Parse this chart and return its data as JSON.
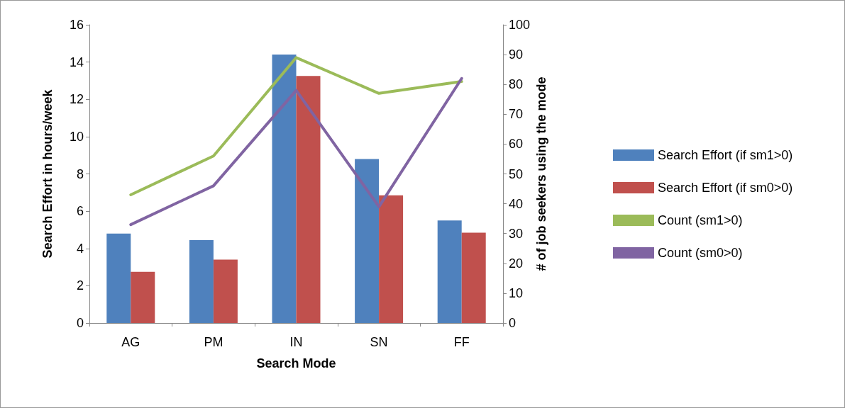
{
  "chart_data": {
    "type": "bar",
    "xlabel": "Search Mode",
    "ylabel": "Search Effort in hours/week",
    "y2label": "# of job seekers using the mode",
    "categories": [
      "AG",
      "PM",
      "IN",
      "SN",
      "FF"
    ],
    "series": [
      {
        "name": "Search Effort (if sm1>0)",
        "color": "#4f81bd",
        "values": [
          4.8,
          4.45,
          14.4,
          8.8,
          5.5
        ]
      },
      {
        "name": "Search Effort (if sm0>0)",
        "color": "#c0504d",
        "values": [
          2.75,
          3.4,
          13.25,
          6.85,
          4.85
        ]
      },
      {
        "name": "Count (sm1>0)",
        "type": "line",
        "axis": "y2",
        "color": "#9bbb59",
        "values": [
          43,
          56,
          89,
          77,
          81
        ]
      },
      {
        "name": "Count (sm0>0)",
        "type": "line",
        "axis": "y2",
        "color": "#8064a2",
        "values": [
          33,
          46,
          78,
          39,
          82
        ]
      }
    ],
    "ylim": [
      0,
      16
    ],
    "yticks": [
      0,
      2,
      4,
      6,
      8,
      10,
      12,
      14,
      16
    ],
    "y2lim": [
      0,
      100
    ],
    "y2ticks": [
      0,
      10,
      20,
      30,
      40,
      50,
      60,
      70,
      80,
      90,
      100
    ],
    "grid": false,
    "legend": "right",
    "marker": "none",
    "line_style": "solid"
  }
}
